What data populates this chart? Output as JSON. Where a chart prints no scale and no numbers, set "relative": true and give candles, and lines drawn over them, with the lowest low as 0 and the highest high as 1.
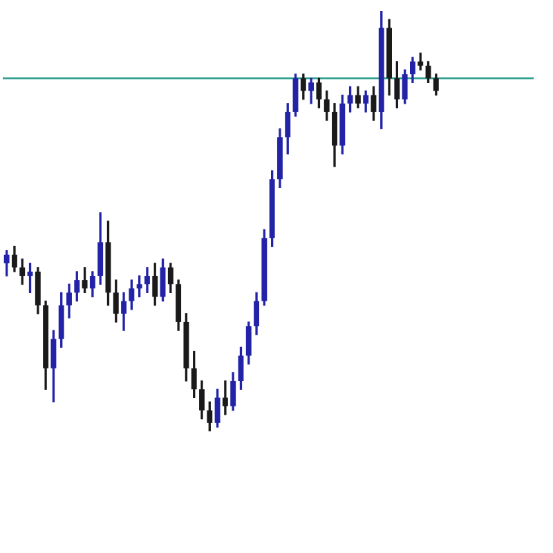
{
  "chart_data": {
    "type": "candlestick",
    "relative": true,
    "colors": [
      "#2323a8",
      "#1a1a1a",
      "#1a1a1a",
      "#2323a8",
      "#1a1a1a",
      "#1a1a1a",
      "#2323a8",
      "#2323a8",
      "#2323a8",
      "#2323a8",
      "#1a1a1a",
      "#2323a8",
      "#2323a8",
      "#1a1a1a",
      "#1a1a1a",
      "#2323a8",
      "#2323a8",
      "#2323a8",
      "#2323a8",
      "#1a1a1a",
      "#2323a8",
      "#1a1a1a",
      "#1a1a1a",
      "#1a1a1a",
      "#1a1a1a",
      "#1a1a1a",
      "#1a1a1a",
      "#2323a8",
      "#1a1a1a",
      "#2323a8",
      "#2323a8",
      "#2323a8",
      "#2323a8",
      "#2323a8",
      "#2323a8",
      "#2323a8",
      "#2323a8",
      "#2323a8",
      "#1a1a1a",
      "#2323a8",
      "#1a1a1a",
      "#1a1a1a",
      "#1a1a1a",
      "#2323a8",
      "#2323a8",
      "#1a1a1a",
      "#2323a8",
      "#1a1a1a",
      "#2323a8",
      "#1a1a1a",
      "#1a1a1a",
      "#2323a8",
      "#2323a8",
      "#1a1a1a",
      "#1a1a1a",
      "#1a1a1a",
      null,
      null,
      null,
      null,
      null,
      null,
      null,
      null,
      null,
      null,
      null,
      null
    ],
    "categories": [
      null,
      null,
      null,
      null,
      null,
      null,
      null,
      null,
      null,
      null,
      null,
      null,
      null,
      null,
      null,
      null,
      null,
      null,
      null,
      null,
      null,
      null,
      null,
      null,
      null,
      null,
      null,
      null,
      null,
      null,
      null,
      null,
      null,
      null,
      null,
      null,
      null,
      null,
      null,
      null,
      null,
      null,
      null,
      null,
      null,
      null,
      null,
      null,
      null,
      null,
      null,
      null,
      null,
      null,
      null,
      null,
      null,
      null,
      null,
      null,
      null,
      null,
      null,
      null,
      null,
      null,
      null,
      null
    ],
    "ohlc": [
      [
        0.4,
        0.43,
        0.37,
        0.42
      ],
      [
        0.42,
        0.44,
        0.38,
        0.39
      ],
      [
        0.39,
        0.41,
        0.35,
        0.37
      ],
      [
        0.37,
        0.4,
        0.33,
        0.38
      ],
      [
        0.38,
        0.39,
        0.28,
        0.3
      ],
      [
        0.3,
        0.31,
        0.1,
        0.15
      ],
      [
        0.15,
        0.24,
        0.07,
        0.22
      ],
      [
        0.22,
        0.33,
        0.2,
        0.3
      ],
      [
        0.3,
        0.35,
        0.27,
        0.33
      ],
      [
        0.33,
        0.38,
        0.31,
        0.36
      ],
      [
        0.36,
        0.39,
        0.33,
        0.34
      ],
      [
        0.34,
        0.38,
        0.32,
        0.37
      ],
      [
        0.37,
        0.52,
        0.35,
        0.45
      ],
      [
        0.45,
        0.5,
        0.3,
        0.33
      ],
      [
        0.33,
        0.36,
        0.26,
        0.28
      ],
      [
        0.28,
        0.33,
        0.24,
        0.31
      ],
      [
        0.31,
        0.36,
        0.29,
        0.34
      ],
      [
        0.34,
        0.37,
        0.32,
        0.35
      ],
      [
        0.35,
        0.39,
        0.33,
        0.37
      ],
      [
        0.37,
        0.4,
        0.3,
        0.32
      ],
      [
        0.32,
        0.41,
        0.31,
        0.39
      ],
      [
        0.39,
        0.4,
        0.33,
        0.35
      ],
      [
        0.35,
        0.36,
        0.24,
        0.26
      ],
      [
        0.26,
        0.28,
        0.12,
        0.15
      ],
      [
        0.15,
        0.19,
        0.08,
        0.1
      ],
      [
        0.1,
        0.12,
        0.03,
        0.05
      ],
      [
        0.05,
        0.07,
        0.0,
        0.02
      ],
      [
        0.02,
        0.1,
        0.01,
        0.08
      ],
      [
        0.08,
        0.12,
        0.04,
        0.06
      ],
      [
        0.06,
        0.14,
        0.05,
        0.12
      ],
      [
        0.12,
        0.2,
        0.1,
        0.18
      ],
      [
        0.18,
        0.26,
        0.16,
        0.25
      ],
      [
        0.25,
        0.33,
        0.23,
        0.31
      ],
      [
        0.31,
        0.48,
        0.3,
        0.46
      ],
      [
        0.46,
        0.62,
        0.44,
        0.6
      ],
      [
        0.6,
        0.72,
        0.58,
        0.7
      ],
      [
        0.7,
        0.78,
        0.66,
        0.76
      ],
      [
        0.76,
        0.85,
        0.75,
        0.84
      ],
      [
        0.84,
        0.85,
        0.79,
        0.81
      ],
      [
        0.81,
        0.84,
        0.78,
        0.83
      ],
      [
        0.83,
        0.84,
        0.77,
        0.79
      ],
      [
        0.79,
        0.81,
        0.74,
        0.76
      ],
      [
        0.76,
        0.78,
        0.63,
        0.68
      ],
      [
        0.68,
        0.8,
        0.66,
        0.78
      ],
      [
        0.78,
        0.82,
        0.76,
        0.8
      ],
      [
        0.8,
        0.82,
        0.77,
        0.78
      ],
      [
        0.78,
        0.81,
        0.76,
        0.8
      ],
      [
        0.8,
        0.82,
        0.74,
        0.76
      ],
      [
        0.76,
        1.0,
        0.72,
        0.96
      ],
      [
        0.96,
        0.98,
        0.8,
        0.84
      ],
      [
        0.84,
        0.88,
        0.77,
        0.79
      ],
      [
        0.79,
        0.86,
        0.78,
        0.85
      ],
      [
        0.85,
        0.89,
        0.83,
        0.88
      ],
      [
        0.88,
        0.9,
        0.86,
        0.87
      ],
      [
        0.87,
        0.88,
        0.83,
        0.84
      ],
      [
        0.84,
        0.85,
        0.8,
        0.81
      ],
      null,
      null,
      null,
      null,
      null,
      null,
      null,
      null,
      null,
      null,
      null,
      null
    ],
    "ref_lines": [
      {
        "axis": "y",
        "value": 0.84,
        "color": "#2a9d8f"
      }
    ],
    "grid": false,
    "legend": false
  }
}
